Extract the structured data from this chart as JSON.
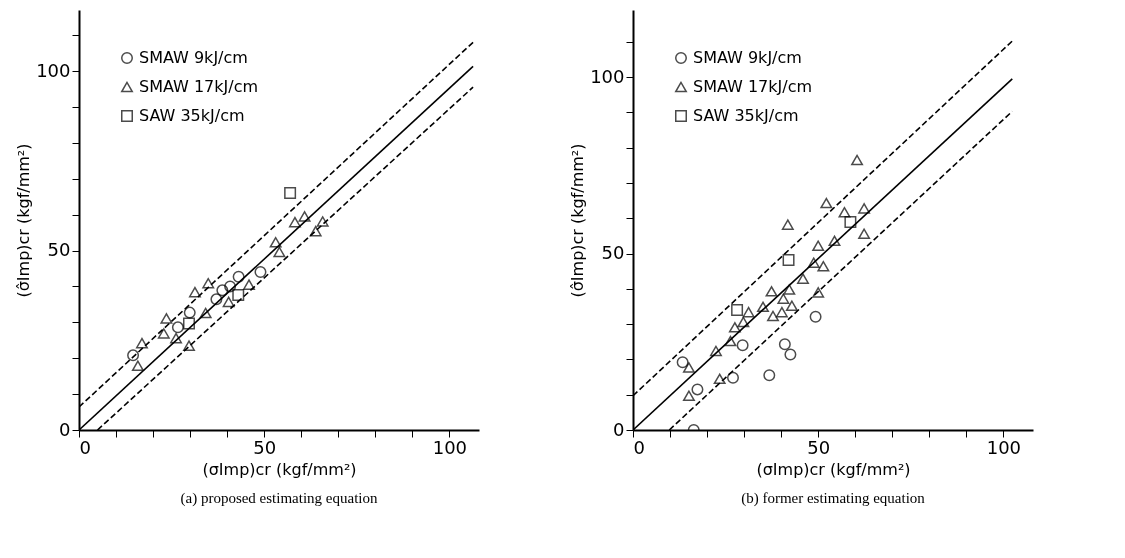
{
  "chart_data": [
    {
      "type": "scatter",
      "title": "(a)  proposed estimating equation",
      "xlabel": "(σImp)cr  (kgf/mm²)",
      "ylabel": "(σ̂Imp)cr  (kgf/mm²)",
      "xlim": [
        0,
        108
      ],
      "ylim": [
        0,
        117
      ],
      "xticks": [
        0,
        {
          "value": 10,
          "label": null
        },
        {
          "value": 20,
          "label": null
        },
        {
          "value": 30,
          "label": null
        },
        {
          "value": 40,
          "label": null
        },
        50,
        {
          "value": 60,
          "label": null
        },
        {
          "value": 70,
          "label": null
        },
        {
          "value": 80,
          "label": null
        },
        {
          "value": 90,
          "label": null
        },
        100
      ],
      "yticks": [
        0,
        {
          "value": 10,
          "label": null
        },
        {
          "value": 20,
          "label": null
        },
        {
          "value": 30,
          "label": null
        },
        {
          "value": 40,
          "label": null
        },
        50,
        {
          "value": 60,
          "label": null
        },
        {
          "value": 70,
          "label": null
        },
        {
          "value": 80,
          "label": null
        },
        {
          "value": 90,
          "label": null
        },
        100,
        {
          "value": 110,
          "label": null
        }
      ],
      "grid": false,
      "legend": "top left",
      "series": [
        {
          "name": "SMAW  9kJ/cm",
          "color": "#000000",
          "marker": "circle",
          "x": [
            14.6,
            26.7,
            29.9,
            37.1,
            38.7,
            40.8,
            43.1,
            49.0
          ],
          "values": [
            20.8,
            28.6,
            32.7,
            36.4,
            38.9,
            40.0,
            42.7,
            44.0
          ]
        },
        {
          "name": "SMAW  17kJ/cm",
          "color": "#000000",
          "marker": "triangle",
          "x": [
            15.9,
            17.0,
            22.9,
            23.6,
            26.2,
            29.7,
            31.3,
            34.9,
            34.2,
            40.4,
            45.9,
            53.1,
            54.1,
            58.3,
            60.9,
            65.8,
            63.9
          ],
          "values": [
            17.9,
            24.2,
            26.9,
            31.1,
            25.6,
            23.5,
            38.4,
            40.9,
            32.6,
            35.7,
            40.5,
            52.3,
            49.6,
            57.9,
            59.5,
            58.1,
            55.4
          ]
        },
        {
          "name": "SAW  35kJ/cm",
          "color": "#000000",
          "marker": "square",
          "x": [
            57.0,
            43.0,
            29.7
          ],
          "values": [
            66.0,
            37.6,
            29.7
          ]
        },
        {
          "type": "line",
          "color": "#000000",
          "line_style": "solid",
          "marker": "none",
          "x": [
            0,
            106.4
          ],
          "values": [
            0,
            101.3
          ]
        },
        {
          "type": "line",
          "color": "#000000",
          "line_style": "dashed",
          "marker": "none",
          "x": [
            0,
            106.4
          ],
          "values": [
            6.4,
            108.0
          ]
        },
        {
          "type": "line",
          "color": "#000000",
          "line_style": "dashed",
          "marker": "none",
          "x": [
            5.0,
            106.4
          ],
          "values": [
            0,
            95.5
          ]
        }
      ]
    },
    {
      "type": "scatter",
      "title": "(b)  former estimating equation",
      "xlabel": "(σImp)cr  (kgf/mm²)",
      "ylabel": "(σ̂Imp)cr  (kgf/mm²)",
      "xlim": [
        0,
        108
      ],
      "ylim": [
        0,
        119
      ],
      "xticks": [
        0,
        {
          "value": 10,
          "label": null
        },
        {
          "value": 20,
          "label": null
        },
        {
          "value": 30,
          "label": null
        },
        {
          "value": 40,
          "label": null
        },
        50,
        {
          "value": 60,
          "label": null
        },
        {
          "value": 70,
          "label": null
        },
        {
          "value": 80,
          "label": null
        },
        {
          "value": 90,
          "label": null
        },
        100
      ],
      "yticks": [
        0,
        {
          "value": 10,
          "label": null
        },
        {
          "value": 20,
          "label": null
        },
        {
          "value": 30,
          "label": null
        },
        {
          "value": 40,
          "label": null
        },
        50,
        {
          "value": 60,
          "label": null
        },
        {
          "value": 70,
          "label": null
        },
        {
          "value": 80,
          "label": null
        },
        {
          "value": 90,
          "label": null
        },
        100,
        {
          "value": 110,
          "label": null
        }
      ],
      "grid": false,
      "legend": "top left",
      "series": [
        {
          "name": "SMAW  9kJ/cm",
          "color": "#000000",
          "marker": "circle",
          "x": [
            13.4,
            17.4,
            16.4,
            27.0,
            29.6,
            36.8,
            41.0,
            42.5,
            49.3
          ],
          "values": [
            19.2,
            11.5,
            0,
            14.8,
            24.0,
            15.5,
            24.3,
            21.4,
            32.1
          ]
        },
        {
          "name": "SMAW  17kJ/cm",
          "color": "#000000",
          "marker": "triangle",
          "x": [
            15.1,
            15.1,
            22.4,
            23.4,
            26.3,
            27.5,
            29.8,
            31.2,
            35.1,
            37.4,
            37.8,
            40.6,
            40.2,
            41.8,
            42.2,
            42.9,
            45.9,
            48.8,
            50.0,
            50.0,
            51.4,
            52.2,
            54.4,
            57.1,
            60.5,
            62.4,
            62.4
          ],
          "values": [
            17.7,
            9.7,
            22.4,
            14.5,
            25.2,
            29.1,
            30.6,
            33.4,
            34.9,
            39.3,
            32.3,
            37.2,
            33.4,
            58.2,
            39.8,
            35.2,
            42.9,
            47.4,
            52.2,
            39.0,
            46.4,
            64.3,
            53.6,
            61.7,
            76.5,
            62.8,
            55.6
          ]
        },
        {
          "name": "SAW  35kJ/cm",
          "color": "#000000",
          "marker": "square",
          "x": [
            28.1,
            42.0,
            58.7
          ],
          "values": [
            34.0,
            48.2,
            58.9
          ]
        },
        {
          "type": "line",
          "color": "#000000",
          "line_style": "solid",
          "marker": "none",
          "x": [
            0,
            102.4
          ],
          "values": [
            0,
            99.5
          ]
        },
        {
          "type": "line",
          "color": "#000000",
          "line_style": "dashed",
          "marker": "none",
          "x": [
            0,
            102.4
          ],
          "values": [
            9.7,
            110.2
          ]
        },
        {
          "type": "line",
          "color": "#000000",
          "line_style": "dashed",
          "marker": "none",
          "x": [
            9.8,
            102.4
          ],
          "values": [
            0,
            90.3
          ]
        }
      ]
    }
  ]
}
